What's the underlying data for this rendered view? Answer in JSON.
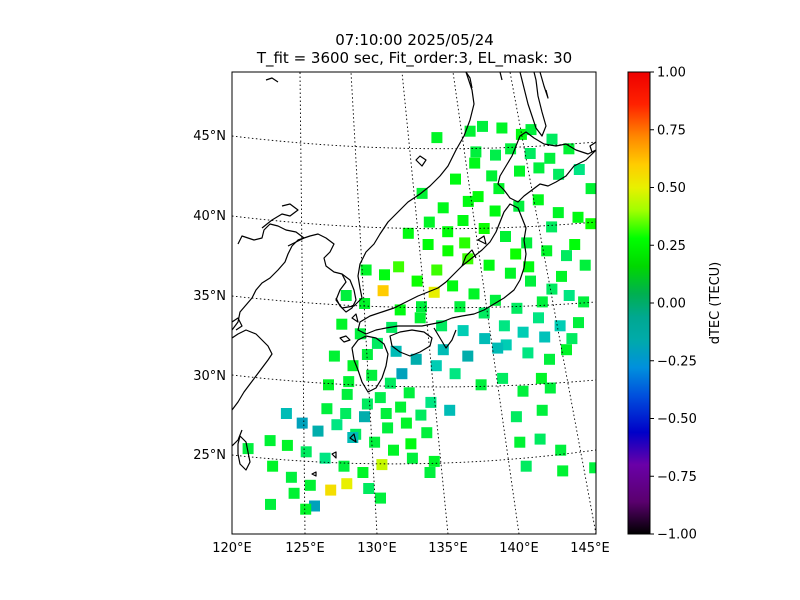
{
  "title": {
    "line1": "07:10:00 2025/05/24",
    "line2": "T_fit = 3600 sec, Fit_order:3, EL_mask: 30"
  },
  "map": {
    "lon_ticks": [
      "120°E",
      "125°E",
      "130°E",
      "135°E",
      "140°E",
      "145°E"
    ],
    "lat_ticks": [
      "25°N",
      "30°N",
      "35°N",
      "40°N",
      "45°N"
    ],
    "lon_range": [
      120,
      145
    ],
    "lat_range": [
      20,
      49
    ],
    "graticule": "dotted",
    "coastline_color": "#000000"
  },
  "colorbar": {
    "label": "dTEC (TECU)",
    "ticks": [
      "1.00",
      "0.75",
      "0.50",
      "0.25",
      "0.00",
      "−0.25",
      "−0.50",
      "−0.75",
      "−1.00"
    ],
    "range": [
      -1.0,
      1.0
    ],
    "colormap": "nipy_spectral",
    "placement": "right"
  },
  "chart_data": {
    "type": "heatmap",
    "title": "07:10:00 2025/05/24",
    "subtitle": "T_fit = 3600 sec, Fit_order:3, EL_mask: 30",
    "xlabel": "",
    "ylabel": "",
    "colorbar_label": "dTEC (TECU)",
    "xlim": [
      120,
      145
    ],
    "ylim": [
      20,
      49
    ],
    "clim": [
      -1.0,
      1.0
    ],
    "points": [
      {
        "lon": 136.7,
        "lat": 45.3,
        "v": 0.12
      },
      {
        "lon": 137.6,
        "lat": 45.6,
        "v": 0.1
      },
      {
        "lon": 139.0,
        "lat": 45.5,
        "v": 0.15
      },
      {
        "lon": 140.4,
        "lat": 45.1,
        "v": 0.2
      },
      {
        "lon": 141.1,
        "lat": 45.4,
        "v": 0.1
      },
      {
        "lon": 142.6,
        "lat": 44.8,
        "v": 0.05
      },
      {
        "lon": 143.8,
        "lat": 44.2,
        "v": 0.12
      },
      {
        "lon": 134.3,
        "lat": 44.9,
        "v": 0.15
      },
      {
        "lon": 137.0,
        "lat": 43.3,
        "v": 0.18
      },
      {
        "lon": 138.5,
        "lat": 43.8,
        "v": 0.08
      },
      {
        "lon": 140.2,
        "lat": 42.8,
        "v": 0.15
      },
      {
        "lon": 141.6,
        "lat": 43.0,
        "v": 0.1
      },
      {
        "lon": 143.0,
        "lat": 42.6,
        "v": 0.05
      },
      {
        "lon": 144.5,
        "lat": 42.9,
        "v": 0.0
      },
      {
        "lon": 145.3,
        "lat": 41.7,
        "v": 0.12
      },
      {
        "lon": 135.6,
        "lat": 42.3,
        "v": 0.2
      },
      {
        "lon": 137.2,
        "lat": 41.2,
        "v": 0.22
      },
      {
        "lon": 138.7,
        "lat": 41.7,
        "v": 0.15
      },
      {
        "lon": 140.1,
        "lat": 40.6,
        "v": 0.1
      },
      {
        "lon": 141.5,
        "lat": 41.0,
        "v": 0.18
      },
      {
        "lon": 142.9,
        "lat": 40.2,
        "v": 0.15
      },
      {
        "lon": 144.3,
        "lat": 39.9,
        "v": 0.2
      },
      {
        "lon": 145.2,
        "lat": 39.5,
        "v": 0.25
      },
      {
        "lon": 133.2,
        "lat": 41.4,
        "v": 0.12
      },
      {
        "lon": 134.7,
        "lat": 40.5,
        "v": 0.18
      },
      {
        "lon": 136.1,
        "lat": 39.7,
        "v": 0.2
      },
      {
        "lon": 137.6,
        "lat": 39.2,
        "v": 0.25
      },
      {
        "lon": 139.1,
        "lat": 38.7,
        "v": 0.12
      },
      {
        "lon": 140.6,
        "lat": 38.3,
        "v": 0.1
      },
      {
        "lon": 142.0,
        "lat": 37.8,
        "v": 0.15
      },
      {
        "lon": 143.4,
        "lat": 37.5,
        "v": 0.05
      },
      {
        "lon": 144.7,
        "lat": 36.9,
        "v": 0.1
      },
      {
        "lon": 132.2,
        "lat": 38.9,
        "v": 0.2
      },
      {
        "lon": 133.6,
        "lat": 38.2,
        "v": 0.22
      },
      {
        "lon": 135.0,
        "lat": 37.8,
        "v": 0.25
      },
      {
        "lon": 136.4,
        "lat": 37.3,
        "v": 0.3
      },
      {
        "lon": 137.9,
        "lat": 36.9,
        "v": 0.2
      },
      {
        "lon": 139.4,
        "lat": 36.4,
        "v": 0.15
      },
      {
        "lon": 140.8,
        "lat": 35.9,
        "v": 0.1
      },
      {
        "lon": 142.3,
        "lat": 35.4,
        "v": 0.05
      },
      {
        "lon": 143.5,
        "lat": 35.0,
        "v": 0.0
      },
      {
        "lon": 144.5,
        "lat": 34.6,
        "v": 0.1
      },
      {
        "lon": 129.2,
        "lat": 36.6,
        "v": 0.15
      },
      {
        "lon": 130.5,
        "lat": 36.3,
        "v": 0.2
      },
      {
        "lon": 131.5,
        "lat": 36.8,
        "v": 0.3
      },
      {
        "lon": 132.8,
        "lat": 35.9,
        "v": 0.25
      },
      {
        "lon": 134.0,
        "lat": 35.2,
        "v": 0.5
      },
      {
        "lon": 135.3,
        "lat": 35.6,
        "v": 0.2
      },
      {
        "lon": 136.8,
        "lat": 35.1,
        "v": 0.15
      },
      {
        "lon": 138.3,
        "lat": 34.7,
        "v": 0.1
      },
      {
        "lon": 139.8,
        "lat": 34.2,
        "v": 0.05
      },
      {
        "lon": 141.3,
        "lat": 33.6,
        "v": 0.0
      },
      {
        "lon": 142.8,
        "lat": 33.1,
        "v": -0.05
      },
      {
        "lon": 144.1,
        "lat": 33.3,
        "v": 0.1
      },
      {
        "lon": 127.8,
        "lat": 35.0,
        "v": 0.1
      },
      {
        "lon": 129.1,
        "lat": 34.5,
        "v": 0.15
      },
      {
        "lon": 130.4,
        "lat": 35.3,
        "v": 0.6
      },
      {
        "lon": 131.6,
        "lat": 34.1,
        "v": 0.2
      },
      {
        "lon": 133.0,
        "lat": 33.6,
        "v": 0.12
      },
      {
        "lon": 134.5,
        "lat": 33.1,
        "v": 0.05
      },
      {
        "lon": 136.0,
        "lat": 32.8,
        "v": -0.05
      },
      {
        "lon": 137.5,
        "lat": 32.3,
        "v": -0.1
      },
      {
        "lon": 139.0,
        "lat": 31.9,
        "v": -0.05
      },
      {
        "lon": 140.5,
        "lat": 31.4,
        "v": 0.0
      },
      {
        "lon": 142.0,
        "lat": 31.0,
        "v": 0.1
      },
      {
        "lon": 143.2,
        "lat": 31.6,
        "v": 0.15
      },
      {
        "lon": 127.5,
        "lat": 33.2,
        "v": 0.15
      },
      {
        "lon": 128.8,
        "lat": 32.6,
        "v": 0.1
      },
      {
        "lon": 130.0,
        "lat": 32.0,
        "v": 0.05
      },
      {
        "lon": 131.3,
        "lat": 31.5,
        "v": -0.1
      },
      {
        "lon": 132.7,
        "lat": 31.0,
        "v": -0.15
      },
      {
        "lon": 134.1,
        "lat": 30.6,
        "v": -0.05
      },
      {
        "lon": 135.4,
        "lat": 30.1,
        "v": 0.0
      },
      {
        "lon": 137.2,
        "lat": 29.4,
        "v": 0.1
      },
      {
        "lon": 138.7,
        "lat": 29.8,
        "v": 0.05
      },
      {
        "lon": 140.1,
        "lat": 29.0,
        "v": 0.1
      },
      {
        "lon": 127.0,
        "lat": 31.2,
        "v": 0.12
      },
      {
        "lon": 128.3,
        "lat": 30.6,
        "v": 0.15
      },
      {
        "lon": 129.6,
        "lat": 30.0,
        "v": 0.1
      },
      {
        "lon": 130.9,
        "lat": 29.5,
        "v": 0.05
      },
      {
        "lon": 132.2,
        "lat": 28.9,
        "v": 0.1
      },
      {
        "lon": 133.7,
        "lat": 28.3,
        "v": 0.0
      },
      {
        "lon": 135.0,
        "lat": 27.8,
        "v": -0.1
      },
      {
        "lon": 141.4,
        "lat": 29.8,
        "v": 0.15
      },
      {
        "lon": 126.6,
        "lat": 29.4,
        "v": 0.15
      },
      {
        "lon": 127.9,
        "lat": 28.8,
        "v": 0.1
      },
      {
        "lon": 129.3,
        "lat": 28.2,
        "v": 0.05
      },
      {
        "lon": 130.6,
        "lat": 27.6,
        "v": 0.1
      },
      {
        "lon": 132.0,
        "lat": 27.0,
        "v": 0.15
      },
      {
        "lon": 133.4,
        "lat": 26.4,
        "v": 0.1
      },
      {
        "lon": 139.6,
        "lat": 27.4,
        "v": 0.05
      },
      {
        "lon": 141.4,
        "lat": 27.8,
        "v": 0.1
      },
      {
        "lon": 123.7,
        "lat": 27.6,
        "v": -0.1
      },
      {
        "lon": 124.8,
        "lat": 27.0,
        "v": -0.2
      },
      {
        "lon": 125.9,
        "lat": 26.5,
        "v": -0.15
      },
      {
        "lon": 127.2,
        "lat": 26.9,
        "v": 0.0
      },
      {
        "lon": 128.5,
        "lat": 26.3,
        "v": 0.05
      },
      {
        "lon": 129.8,
        "lat": 25.8,
        "v": 0.1
      },
      {
        "lon": 131.1,
        "lat": 25.3,
        "v": 0.15
      },
      {
        "lon": 132.4,
        "lat": 24.8,
        "v": 0.1
      },
      {
        "lon": 133.9,
        "lat": 24.6,
        "v": 0.15
      },
      {
        "lon": 139.8,
        "lat": 25.8,
        "v": 0.12
      },
      {
        "lon": 141.2,
        "lat": 26.0,
        "v": 0.05
      },
      {
        "lon": 142.6,
        "lat": 25.3,
        "v": 0.1
      },
      {
        "lon": 122.6,
        "lat": 25.9,
        "v": 0.12
      },
      {
        "lon": 123.8,
        "lat": 25.6,
        "v": 0.15
      },
      {
        "lon": 125.1,
        "lat": 25.2,
        "v": 0.05
      },
      {
        "lon": 126.4,
        "lat": 24.8,
        "v": 0.0
      },
      {
        "lon": 127.7,
        "lat": 24.3,
        "v": 0.1
      },
      {
        "lon": 129.0,
        "lat": 23.9,
        "v": 0.15
      },
      {
        "lon": 130.3,
        "lat": 24.4,
        "v": 0.45
      },
      {
        "lon": 133.6,
        "lat": 23.9,
        "v": 0.1
      },
      {
        "lon": 140.2,
        "lat": 24.3,
        "v": 0.05
      },
      {
        "lon": 142.7,
        "lat": 24.0,
        "v": 0.12
      },
      {
        "lon": 144.9,
        "lat": 24.2,
        "v": 0.1
      },
      {
        "lon": 121.1,
        "lat": 25.4,
        "v": 0.1
      },
      {
        "lon": 122.8,
        "lat": 24.3,
        "v": 0.15
      },
      {
        "lon": 124.1,
        "lat": 23.6,
        "v": 0.1
      },
      {
        "lon": 125.4,
        "lat": 23.1,
        "v": 0.12
      },
      {
        "lon": 126.8,
        "lat": 22.8,
        "v": 0.55
      },
      {
        "lon": 127.9,
        "lat": 23.2,
        "v": 0.5
      },
      {
        "lon": 129.4,
        "lat": 22.9,
        "v": 0.05
      },
      {
        "lon": 130.2,
        "lat": 22.3,
        "v": 0.1
      },
      {
        "lon": 124.3,
        "lat": 22.6,
        "v": 0.12
      },
      {
        "lon": 125.7,
        "lat": 21.8,
        "v": -0.2
      },
      {
        "lon": 122.7,
        "lat": 21.9,
        "v": 0.1
      },
      {
        "lon": 125.1,
        "lat": 21.6,
        "v": 0.15
      },
      {
        "lon": 128.3,
        "lat": 26.1,
        "v": -0.1
      },
      {
        "lon": 129.1,
        "lat": 27.4,
        "v": -0.15
      },
      {
        "lon": 131.7,
        "lat": 30.1,
        "v": -0.2
      },
      {
        "lon": 134.6,
        "lat": 31.6,
        "v": -0.1
      },
      {
        "lon": 136.3,
        "lat": 31.2,
        "v": -0.15
      },
      {
        "lon": 138.4,
        "lat": 31.7,
        "v": -0.1
      },
      {
        "lon": 141.7,
        "lat": 32.4,
        "v": -0.08
      },
      {
        "lon": 140.7,
        "lat": 36.8,
        "v": 0.2
      },
      {
        "lon": 139.8,
        "lat": 37.6,
        "v": 0.25
      },
      {
        "lon": 142.4,
        "lat": 39.3,
        "v": 0.05
      },
      {
        "lon": 138.4,
        "lat": 40.3,
        "v": 0.2
      },
      {
        "lon": 136.2,
        "lat": 38.3,
        "v": 0.28
      },
      {
        "lon": 134.2,
        "lat": 36.6,
        "v": 0.3
      },
      {
        "lon": 133.1,
        "lat": 34.3,
        "v": 0.1
      },
      {
        "lon": 131.0,
        "lat": 33.0,
        "v": 0.05
      },
      {
        "lon": 129.3,
        "lat": 31.3,
        "v": 0.1
      },
      {
        "lon": 127.8,
        "lat": 27.6,
        "v": 0.05
      },
      {
        "lon": 130.7,
        "lat": 26.7,
        "v": 0.1
      },
      {
        "lon": 132.3,
        "lat": 25.7,
        "v": 0.2
      },
      {
        "lon": 126.5,
        "lat": 27.9,
        "v": 0.1
      },
      {
        "lon": 144.0,
        "lat": 38.2,
        "v": 0.22
      },
      {
        "lon": 143.0,
        "lat": 36.2,
        "v": 0.15
      },
      {
        "lon": 141.6,
        "lat": 34.6,
        "v": 0.1
      },
      {
        "lon": 143.6,
        "lat": 32.3,
        "v": 0.05
      },
      {
        "lon": 142.0,
        "lat": 29.2,
        "v": 0.1
      },
      {
        "lon": 137.5,
        "lat": 33.9,
        "v": 0.05
      },
      {
        "lon": 135.8,
        "lat": 34.3,
        "v": 0.1
      },
      {
        "lon": 138.9,
        "lat": 33.1,
        "v": 0.0
      },
      {
        "lon": 140.2,
        "lat": 32.7,
        "v": -0.05
      },
      {
        "lon": 128.0,
        "lat": 29.6,
        "v": 0.12
      },
      {
        "lon": 130.2,
        "lat": 28.6,
        "v": 0.08
      },
      {
        "lon": 131.6,
        "lat": 28.0,
        "v": 0.12
      },
      {
        "lon": 133.0,
        "lat": 27.5,
        "v": 0.05
      },
      {
        "lon": 138.2,
        "lat": 42.5,
        "v": 0.12
      },
      {
        "lon": 139.6,
        "lat": 44.2,
        "v": 0.1
      },
      {
        "lon": 141.0,
        "lat": 43.9,
        "v": 0.05
      },
      {
        "lon": 142.4,
        "lat": 43.6,
        "v": 0.1
      },
      {
        "lon": 136.5,
        "lat": 40.9,
        "v": 0.2
      },
      {
        "lon": 135.0,
        "lat": 39.0,
        "v": 0.22
      },
      {
        "lon": 133.7,
        "lat": 39.6,
        "v": 0.15
      },
      {
        "lon": 137.1,
        "lat": 44.0,
        "v": 0.1
      }
    ]
  }
}
